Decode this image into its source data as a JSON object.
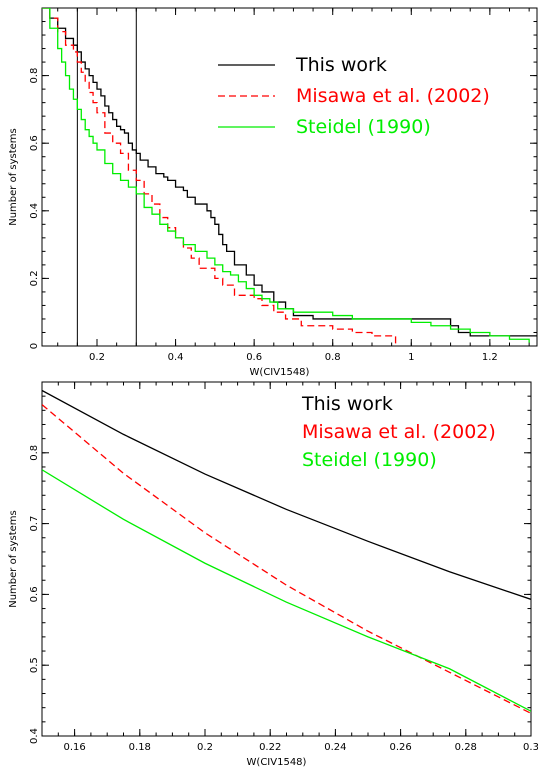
{
  "chart_data": [
    {
      "type": "line",
      "xlabel": "W(CIV1548)",
      "ylabel": "Number of systems",
      "xlim": [
        0.06,
        1.32
      ],
      "ylim": [
        0,
        1.0
      ],
      "xticks": [
        0.2,
        0.4,
        0.6,
        0.8,
        1,
        1.2
      ],
      "xtick_labels": [
        "0.2",
        "0.4",
        "0.6",
        "0.8",
        "1",
        "1.2"
      ],
      "yticks": [
        0,
        0.2,
        0.4,
        0.6,
        0.8
      ],
      "ytick_labels": [
        "0",
        "0.2",
        "0.4",
        "0.6",
        "0.8"
      ],
      "vlines": [
        0.15,
        0.3
      ],
      "grid": false,
      "legend_position": "top-right",
      "series": [
        {
          "name": "This work",
          "color": "#000000",
          "style": "step-solid",
          "x": [
            0.06,
            0.08,
            0.1,
            0.12,
            0.14,
            0.15,
            0.16,
            0.17,
            0.18,
            0.19,
            0.2,
            0.21,
            0.22,
            0.23,
            0.24,
            0.25,
            0.26,
            0.27,
            0.28,
            0.29,
            0.3,
            0.31,
            0.33,
            0.35,
            0.37,
            0.38,
            0.4,
            0.42,
            0.43,
            0.45,
            0.47,
            0.48,
            0.49,
            0.5,
            0.51,
            0.52,
            0.53,
            0.55,
            0.58,
            0.6,
            0.62,
            0.65,
            0.68,
            0.7,
            0.75,
            0.8,
            1.05,
            1.1,
            1.12,
            1.15,
            1.32
          ],
          "y": [
            1.0,
            0.97,
            0.94,
            0.91,
            0.89,
            0.87,
            0.84,
            0.82,
            0.8,
            0.78,
            0.76,
            0.74,
            0.71,
            0.69,
            0.67,
            0.65,
            0.64,
            0.63,
            0.6,
            0.58,
            0.57,
            0.55,
            0.53,
            0.51,
            0.5,
            0.49,
            0.47,
            0.46,
            0.44,
            0.42,
            0.42,
            0.4,
            0.38,
            0.36,
            0.33,
            0.3,
            0.28,
            0.24,
            0.21,
            0.18,
            0.16,
            0.13,
            0.11,
            0.09,
            0.08,
            0.08,
            0.08,
            0.06,
            0.04,
            0.03,
            0.03
          ]
        },
        {
          "name": "Misawa et al. (2002)",
          "color": "#ff0000",
          "style": "step-dashed",
          "x": [
            0.06,
            0.08,
            0.1,
            0.12,
            0.14,
            0.15,
            0.16,
            0.17,
            0.18,
            0.19,
            0.2,
            0.22,
            0.24,
            0.26,
            0.28,
            0.3,
            0.32,
            0.34,
            0.36,
            0.38,
            0.4,
            0.42,
            0.44,
            0.46,
            0.5,
            0.52,
            0.55,
            0.58,
            0.6,
            0.62,
            0.65,
            0.68,
            0.72,
            0.8,
            0.85,
            0.9,
            0.96
          ],
          "y": [
            1.0,
            0.97,
            0.93,
            0.89,
            0.87,
            0.84,
            0.81,
            0.78,
            0.75,
            0.72,
            0.69,
            0.63,
            0.6,
            0.57,
            0.52,
            0.49,
            0.45,
            0.42,
            0.38,
            0.35,
            0.32,
            0.29,
            0.26,
            0.23,
            0.2,
            0.18,
            0.15,
            0.15,
            0.14,
            0.12,
            0.1,
            0.08,
            0.06,
            0.05,
            0.04,
            0.03,
            0.0
          ]
        },
        {
          "name": "Steidel (1990)",
          "color": "#00ee00",
          "style": "step-solid",
          "x": [
            0.06,
            0.08,
            0.1,
            0.11,
            0.12,
            0.13,
            0.14,
            0.15,
            0.16,
            0.17,
            0.18,
            0.19,
            0.2,
            0.22,
            0.24,
            0.26,
            0.28,
            0.3,
            0.32,
            0.34,
            0.36,
            0.38,
            0.4,
            0.42,
            0.45,
            0.48,
            0.5,
            0.52,
            0.54,
            0.56,
            0.58,
            0.6,
            0.62,
            0.64,
            0.66,
            0.7,
            0.75,
            0.8,
            0.85,
            0.9,
            1.0,
            1.05,
            1.1,
            1.15,
            1.2,
            1.25,
            1.3
          ],
          "y": [
            1.0,
            0.94,
            0.88,
            0.84,
            0.8,
            0.76,
            0.73,
            0.7,
            0.67,
            0.64,
            0.62,
            0.6,
            0.58,
            0.54,
            0.51,
            0.49,
            0.47,
            0.45,
            0.41,
            0.39,
            0.36,
            0.34,
            0.32,
            0.3,
            0.28,
            0.26,
            0.24,
            0.22,
            0.21,
            0.19,
            0.17,
            0.15,
            0.14,
            0.13,
            0.11,
            0.1,
            0.1,
            0.09,
            0.08,
            0.08,
            0.07,
            0.06,
            0.05,
            0.04,
            0.03,
            0.02,
            0.01
          ]
        }
      ]
    },
    {
      "type": "line",
      "xlabel": "W(CIV1548)",
      "ylabel": "Number of systems",
      "xlim": [
        0.15,
        0.3
      ],
      "ylim": [
        0.4,
        0.9
      ],
      "xticks": [
        0.16,
        0.18,
        0.2,
        0.22,
        0.24,
        0.26,
        0.28,
        0.3
      ],
      "xtick_labels": [
        "0.16",
        "0.18",
        "0.2",
        "0.22",
        "0.24",
        "0.26",
        "0.28",
        "0.3"
      ],
      "yticks": [
        0.4,
        0.5,
        0.6,
        0.7,
        0.8
      ],
      "ytick_labels": [
        "0.4",
        "0.5",
        "0.6",
        "0.7",
        "0.8"
      ],
      "grid": false,
      "legend_position": "top-right",
      "series": [
        {
          "name": "This work",
          "color": "#000000",
          "style": "solid",
          "x": [
            0.15,
            0.175,
            0.2,
            0.225,
            0.25,
            0.275,
            0.3
          ],
          "y": [
            0.888,
            0.826,
            0.77,
            0.72,
            0.675,
            0.632,
            0.593
          ]
        },
        {
          "name": "Misawa et al. (2002)",
          "color": "#ff0000",
          "style": "dashed",
          "x": [
            0.15,
            0.175,
            0.2,
            0.225,
            0.25,
            0.275,
            0.3
          ],
          "y": [
            0.868,
            0.771,
            0.687,
            0.613,
            0.548,
            0.49,
            0.432
          ]
        },
        {
          "name": "Steidel (1990)",
          "color": "#00ee00",
          "style": "solid",
          "x": [
            0.15,
            0.175,
            0.2,
            0.225,
            0.25,
            0.275,
            0.3
          ],
          "y": [
            0.776,
            0.706,
            0.644,
            0.589,
            0.54,
            0.495,
            0.435
          ]
        }
      ]
    }
  ]
}
